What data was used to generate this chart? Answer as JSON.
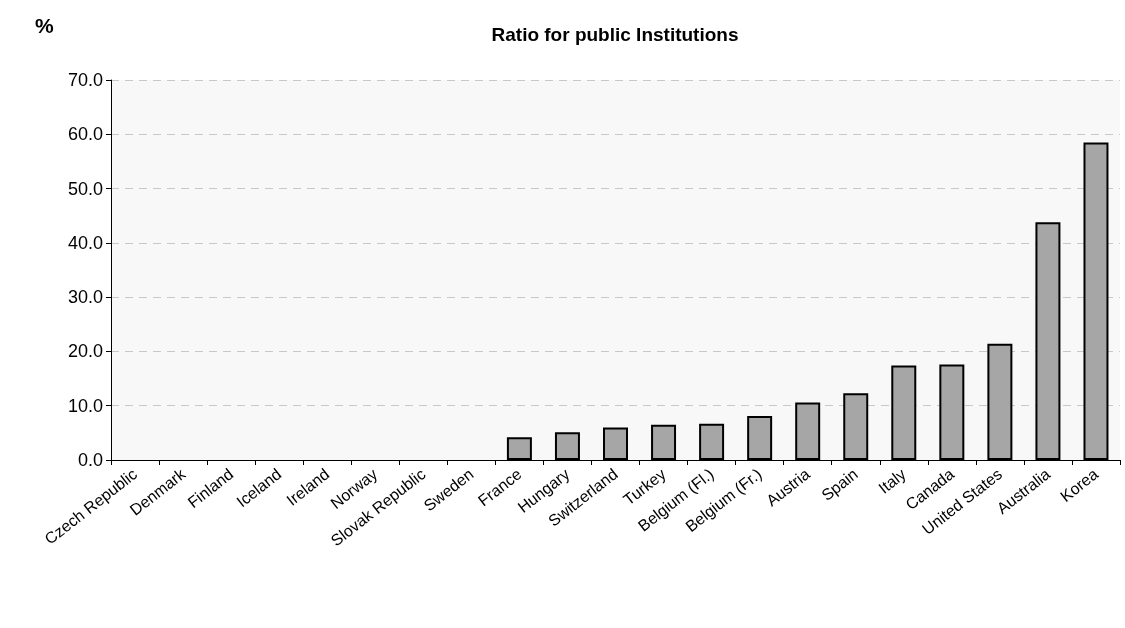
{
  "chart_data": {
    "type": "bar",
    "title": "Ratio for public Institutions",
    "ylabel": "%",
    "categories": [
      "Czech Republic",
      "Denmark",
      "Finland",
      "Iceland",
      "Ireland",
      "Norway",
      "Slovak Republic",
      "Sweden",
      "France",
      "Hungary",
      "Switzerland",
      "Turkey",
      "Belgium (Fl.)",
      "Belgium (Fr.)",
      "Austria",
      "Spain",
      "Italy",
      "Canada",
      "United States",
      "Australia",
      "Korea"
    ],
    "values": [
      0,
      0,
      0,
      0,
      0,
      0,
      0,
      0,
      4.2,
      5.1,
      6.0,
      6.5,
      6.7,
      8.1,
      10.6,
      12.3,
      17.4,
      17.6,
      21.4,
      43.8,
      58.5
    ],
    "color": "#a6a6a6",
    "ylim": [
      0,
      70
    ],
    "yticks": [
      {
        "value": 0,
        "label": "0.0"
      },
      {
        "value": 10,
        "label": "10.0"
      },
      {
        "value": 20,
        "label": "20.0"
      },
      {
        "value": 30,
        "label": "30.0"
      },
      {
        "value": 40,
        "label": "40.0"
      },
      {
        "value": 50,
        "label": "50.0"
      },
      {
        "value": 60,
        "label": "60.0"
      },
      {
        "value": 70,
        "label": "70.0"
      }
    ],
    "grid": "y"
  }
}
